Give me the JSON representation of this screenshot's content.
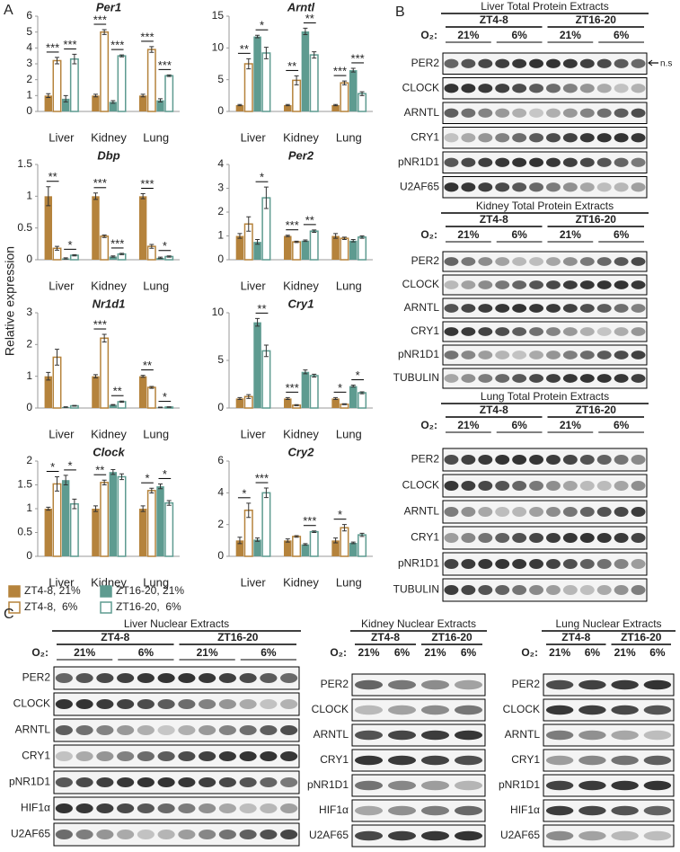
{
  "panel_a_label": "A",
  "y_axis_label": "Relative expression",
  "legend": [
    {
      "name": "ZT4-8, 21%",
      "color": "#b5833c",
      "fill": true
    },
    {
      "name": "ZT4-8,  6%",
      "color": "#b5833c",
      "fill": false
    },
    {
      "name": "ZT16-20, 21%",
      "color": "#5e9b90",
      "fill": true
    },
    {
      "name": "ZT16-20,  6%",
      "color": "#5e9b90",
      "fill": false
    }
  ],
  "chart_data": [
    {
      "type": "bar",
      "title": "Per1",
      "categories": [
        "Liver",
        "Kidney",
        "Lung"
      ],
      "ylim": [
        0,
        6
      ],
      "yticks": [
        0,
        1,
        2,
        3,
        4,
        5,
        6
      ],
      "series": [
        {
          "values": [
            1.0,
            1.0,
            1.0
          ],
          "errors": [
            0.12,
            0.08,
            0.08
          ]
        },
        {
          "values": [
            3.2,
            5.0,
            3.9
          ],
          "errors": [
            0.2,
            0.15,
            0.18
          ]
        },
        {
          "values": [
            0.8,
            0.6,
            0.7
          ],
          "errors": [
            0.2,
            0.08,
            0.1
          ]
        },
        {
          "values": [
            3.3,
            3.5,
            2.25
          ],
          "errors": [
            0.3,
            0.06,
            0.05
          ]
        }
      ],
      "annotations": [
        {
          "label": "***",
          "category": 0,
          "series": [
            0,
            1
          ]
        },
        {
          "label": "***",
          "category": 0,
          "series": [
            2,
            3
          ]
        },
        {
          "label": "***",
          "category": 1,
          "series": [
            0,
            1
          ]
        },
        {
          "label": "***",
          "category": 1,
          "series": [
            2,
            3
          ]
        },
        {
          "label": "***",
          "category": 2,
          "series": [
            0,
            1
          ]
        },
        {
          "label": "***",
          "category": 2,
          "series": [
            2,
            3
          ]
        }
      ]
    },
    {
      "type": "bar",
      "title": "Arntl",
      "categories": [
        "Liver",
        "Kidney",
        "Lung"
      ],
      "ylim": [
        0,
        15
      ],
      "yticks": [
        0,
        5,
        10,
        15
      ],
      "series": [
        {
          "values": [
            1.0,
            1.0,
            1.0
          ],
          "errors": [
            0.1,
            0.1,
            0.1
          ]
        },
        {
          "values": [
            7.5,
            4.9,
            4.5
          ],
          "errors": [
            0.8,
            0.7,
            0.3
          ]
        },
        {
          "values": [
            11.8,
            12.6,
            6.5
          ],
          "errors": [
            0.2,
            0.5,
            0.3
          ]
        },
        {
          "values": [
            9.2,
            8.9,
            2.8
          ],
          "errors": [
            0.9,
            0.5,
            0.3
          ]
        }
      ],
      "annotations": [
        {
          "label": "**",
          "category": 0,
          "series": [
            0,
            1
          ]
        },
        {
          "label": "*",
          "category": 0,
          "series": [
            2,
            3
          ]
        },
        {
          "label": "**",
          "category": 1,
          "series": [
            0,
            1
          ]
        },
        {
          "label": "**",
          "category": 1,
          "series": [
            2,
            3
          ]
        },
        {
          "label": "***",
          "category": 2,
          "series": [
            0,
            1
          ]
        },
        {
          "label": "***",
          "category": 2,
          "series": [
            2,
            3
          ]
        }
      ]
    },
    {
      "type": "bar",
      "title": "Dbp",
      "categories": [
        "Liver",
        "Kidney",
        "Lung"
      ],
      "ylim": [
        0,
        1.5
      ],
      "yticks": [
        0,
        0.5,
        1,
        1.5
      ],
      "series": [
        {
          "values": [
            1.0,
            1.0,
            1.0
          ],
          "errors": [
            0.15,
            0.05,
            0.04
          ]
        },
        {
          "values": [
            0.18,
            0.37,
            0.21
          ],
          "errors": [
            0.03,
            0.02,
            0.03
          ]
        },
        {
          "values": [
            0.02,
            0.05,
            0.03
          ],
          "errors": [
            0.01,
            0.01,
            0.01
          ]
        },
        {
          "values": [
            0.07,
            0.09,
            0.05
          ],
          "errors": [
            0.01,
            0.01,
            0.01
          ]
        }
      ],
      "annotations": [
        {
          "label": "**",
          "category": 0,
          "series": [
            0,
            1
          ]
        },
        {
          "label": "*",
          "category": 0,
          "series": [
            2,
            3
          ]
        },
        {
          "label": "***",
          "category": 1,
          "series": [
            0,
            1
          ]
        },
        {
          "label": "***",
          "category": 1,
          "series": [
            2,
            3
          ]
        },
        {
          "label": "***",
          "category": 2,
          "series": [
            0,
            1
          ]
        },
        {
          "label": "*",
          "category": 2,
          "series": [
            2,
            3
          ]
        }
      ]
    },
    {
      "type": "bar",
      "title": "Per2",
      "categories": [
        "Liver",
        "Kidney",
        "Lung"
      ],
      "ylim": [
        0,
        4
      ],
      "yticks": [
        0,
        1,
        2,
        3,
        4
      ],
      "series": [
        {
          "values": [
            1.0,
            1.0,
            1.0
          ],
          "errors": [
            0.1,
            0.03,
            0.1
          ]
        },
        {
          "values": [
            1.5,
            0.75,
            0.9
          ],
          "errors": [
            0.3,
            0.03,
            0.05
          ]
        },
        {
          "values": [
            0.75,
            0.8,
            0.8
          ],
          "errors": [
            0.1,
            0.03,
            0.05
          ]
        },
        {
          "values": [
            2.6,
            1.2,
            0.95
          ],
          "errors": [
            0.45,
            0.05,
            0.05
          ]
        }
      ],
      "annotations": [
        {
          "label": "*",
          "category": 0,
          "series": [
            2,
            3
          ]
        },
        {
          "label": "***",
          "category": 1,
          "series": [
            0,
            1
          ]
        },
        {
          "label": "**",
          "category": 1,
          "series": [
            2,
            3
          ]
        }
      ]
    },
    {
      "type": "bar",
      "title": "Nr1d1",
      "categories": [
        "Liver",
        "Kidney",
        "Lung"
      ],
      "ylim": [
        0,
        3
      ],
      "yticks": [
        0,
        1,
        2,
        3
      ],
      "series": [
        {
          "values": [
            1.0,
            1.0,
            1.0
          ],
          "errors": [
            0.12,
            0.05,
            0.03
          ]
        },
        {
          "values": [
            1.6,
            2.2,
            0.65
          ],
          "errors": [
            0.25,
            0.12,
            0.03
          ]
        },
        {
          "values": [
            0.03,
            0.1,
            0.02
          ],
          "errors": [
            0.01,
            0.01,
            0.01
          ]
        },
        {
          "values": [
            0.07,
            0.2,
            0.03
          ],
          "errors": [
            0.01,
            0.02,
            0.01
          ]
        }
      ],
      "annotations": [
        {
          "label": "***",
          "category": 1,
          "series": [
            0,
            1
          ]
        },
        {
          "label": "**",
          "category": 1,
          "series": [
            2,
            3
          ]
        },
        {
          "label": "**",
          "category": 2,
          "series": [
            0,
            1
          ]
        },
        {
          "label": "*",
          "category": 2,
          "series": [
            2,
            3
          ]
        }
      ]
    },
    {
      "type": "bar",
      "title": "Cry1",
      "categories": [
        "Liver",
        "Kidney",
        "Lung"
      ],
      "ylim": [
        0,
        10
      ],
      "yticks": [
        0,
        5,
        10
      ],
      "series": [
        {
          "values": [
            1.0,
            1.0,
            1.0
          ],
          "errors": [
            0.1,
            0.1,
            0.1
          ]
        },
        {
          "values": [
            1.2,
            0.3,
            0.4
          ],
          "errors": [
            0.2,
            0.05,
            0.05
          ]
        },
        {
          "values": [
            9.0,
            3.8,
            2.3
          ],
          "errors": [
            0.4,
            0.2,
            0.1
          ]
        },
        {
          "values": [
            6.0,
            3.4,
            1.6
          ],
          "errors": [
            0.6,
            0.15,
            0.1
          ]
        }
      ],
      "annotations": [
        {
          "label": "**",
          "category": 0,
          "series": [
            2,
            3
          ]
        },
        {
          "label": "***",
          "category": 1,
          "series": [
            0,
            1
          ]
        },
        {
          "label": "*",
          "category": 2,
          "series": [
            0,
            1
          ]
        },
        {
          "label": "*",
          "category": 2,
          "series": [
            2,
            3
          ]
        }
      ]
    },
    {
      "type": "bar",
      "title": "Clock",
      "categories": [
        "Liver",
        "Kidney",
        "Lung"
      ],
      "ylim": [
        0,
        2
      ],
      "yticks": [
        0,
        0.5,
        1,
        1.5,
        2
      ],
      "series": [
        {
          "values": [
            1.0,
            1.0,
            1.0
          ],
          "errors": [
            0.03,
            0.06,
            0.06
          ]
        },
        {
          "values": [
            1.52,
            1.55,
            1.38
          ],
          "errors": [
            0.15,
            0.05,
            0.05
          ]
        },
        {
          "values": [
            1.6,
            1.77,
            1.47
          ],
          "errors": [
            0.1,
            0.05,
            0.05
          ]
        },
        {
          "values": [
            1.1,
            1.67,
            1.12
          ],
          "errors": [
            0.1,
            0.06,
            0.05
          ]
        }
      ],
      "annotations": [
        {
          "label": "*",
          "category": 0,
          "series": [
            0,
            1
          ]
        },
        {
          "label": "*",
          "category": 0,
          "series": [
            2,
            3
          ]
        },
        {
          "label": "**",
          "category": 1,
          "series": [
            0,
            1
          ]
        },
        {
          "label": "*",
          "category": 2,
          "series": [
            0,
            1
          ]
        },
        {
          "label": "*",
          "category": 2,
          "series": [
            2,
            3
          ]
        }
      ]
    },
    {
      "type": "bar",
      "title": "Cry2",
      "categories": [
        "Liver",
        "Kidney",
        "Lung"
      ],
      "ylim": [
        0,
        6
      ],
      "yticks": [
        0,
        2,
        4,
        6
      ],
      "series": [
        {
          "values": [
            1.0,
            1.0,
            1.0
          ],
          "errors": [
            0.2,
            0.1,
            0.15
          ]
        },
        {
          "values": [
            2.9,
            1.25,
            1.8
          ],
          "errors": [
            0.45,
            0.05,
            0.2
          ]
        },
        {
          "values": [
            1.05,
            0.75,
            0.85
          ],
          "errors": [
            0.1,
            0.05,
            0.05
          ]
        },
        {
          "values": [
            4.0,
            1.55,
            1.35
          ],
          "errors": [
            0.3,
            0.05,
            0.1
          ]
        }
      ],
      "annotations": [
        {
          "label": "*",
          "category": 0,
          "series": [
            0,
            1
          ]
        },
        {
          "label": "***",
          "category": 0,
          "series": [
            2,
            3
          ]
        },
        {
          "label": "***",
          "category": 1,
          "series": [
            2,
            3
          ]
        },
        {
          "label": "*",
          "category": 2,
          "series": [
            0,
            1
          ]
        }
      ]
    }
  ],
  "blots_b": {
    "label": "B",
    "panels": [
      {
        "title": "Liver Total Protein Extracts",
        "groups": [
          "ZT4-8",
          "ZT16-20"
        ],
        "o2_label": "O₂:",
        "o2": [
          "21%",
          "6%",
          "21%",
          "6%"
        ],
        "rows": [
          "PER2",
          "CLOCK",
          "ARNTL",
          "CRY1",
          "pNR1D1",
          "U2AF65"
        ],
        "marker": "n.s"
      },
      {
        "title": "Kidney Total Protein Extracts",
        "groups": [
          "ZT4-8",
          "ZT16-20"
        ],
        "o2_label": "O₂:",
        "o2": [
          "21%",
          "6%",
          "21%",
          "6%"
        ],
        "rows": [
          "PER2",
          "CLOCK",
          "ARNTL",
          "CRY1",
          "pNR1D1",
          "TUBULIN"
        ]
      },
      {
        "title": "Lung Total Protein Extracts",
        "groups": [
          "ZT4-8",
          "ZT16-20"
        ],
        "o2_label": "O₂:",
        "o2": [
          "21%",
          "6%",
          "21%",
          "6%"
        ],
        "rows": [
          "PER2",
          "CLOCK",
          "ARNTL",
          "CRY1",
          "pNR1D1",
          "TUBULIN"
        ]
      }
    ]
  },
  "blots_c": {
    "label": "C",
    "panels": [
      {
        "title": "Liver Nuclear Extracts",
        "groups": [
          "ZT4-8",
          "ZT16-20"
        ],
        "o2_label": "O₂:",
        "o2": [
          "21%",
          "6%",
          "21%",
          "6%"
        ],
        "rows": [
          "PER2",
          "CLOCK",
          "ARNTL",
          "CRY1",
          "pNR1D1",
          "HIF1α",
          "U2AF65"
        ]
      },
      {
        "title": "Kidney Nuclear Extracts",
        "groups": [
          "ZT4-8",
          "ZT16-20"
        ],
        "o2_label": "O₂:",
        "o2": [
          "21%",
          "6%",
          "21%",
          "6%"
        ],
        "rows": [
          "PER2",
          "CLOCK",
          "ARNTL",
          "CRY1",
          "pNR1D1",
          "HIF1α",
          "U2AF65"
        ]
      },
      {
        "title": "Lung Nuclear Extracts",
        "groups": [
          "ZT4-8",
          "ZT16-20"
        ],
        "o2_label": "O₂:",
        "o2": [
          "21%",
          "6%",
          "21%",
          "6%"
        ],
        "rows": [
          "PER2",
          "CLOCK",
          "ARNTL",
          "CRY1",
          "pNR1D1",
          "HIF1α",
          "U2AF65"
        ]
      }
    ]
  }
}
